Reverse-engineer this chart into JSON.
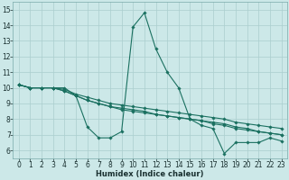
{
  "xlabel": "Humidex (Indice chaleur)",
  "bg_color": "#cce8e8",
  "grid_color": "#aacece",
  "line_color": "#1a7060",
  "xlim": [
    -0.5,
    23.5
  ],
  "ylim": [
    5.5,
    15.5
  ],
  "xticks": [
    0,
    1,
    2,
    3,
    4,
    5,
    6,
    7,
    8,
    9,
    10,
    11,
    12,
    13,
    14,
    15,
    16,
    17,
    18,
    19,
    20,
    21,
    22,
    23
  ],
  "yticks": [
    6,
    7,
    8,
    9,
    10,
    11,
    12,
    13,
    14,
    15
  ],
  "lines": [
    [
      10.2,
      10.0,
      10.0,
      10.0,
      10.0,
      9.5,
      7.5,
      6.8,
      6.8,
      7.2,
      13.9,
      14.8,
      12.5,
      11.0,
      10.0,
      8.0,
      7.6,
      7.4,
      5.8,
      6.5,
      6.5,
      6.5,
      6.8,
      6.6
    ],
    [
      10.2,
      10.0,
      10.0,
      10.0,
      9.8,
      9.5,
      9.2,
      9.0,
      8.8,
      8.6,
      8.5,
      8.4,
      8.3,
      8.2,
      8.1,
      8.0,
      7.9,
      7.8,
      7.7,
      7.5,
      7.4,
      7.2,
      7.1,
      7.0
    ],
    [
      10.2,
      10.0,
      10.0,
      10.0,
      9.8,
      9.5,
      9.2,
      9.0,
      8.8,
      8.7,
      8.6,
      8.5,
      8.3,
      8.2,
      8.1,
      8.0,
      7.9,
      7.7,
      7.6,
      7.4,
      7.3,
      7.2,
      7.1,
      7.0
    ],
    [
      10.2,
      10.0,
      10.0,
      10.0,
      9.9,
      9.6,
      9.4,
      9.2,
      9.0,
      8.9,
      8.8,
      8.7,
      8.6,
      8.5,
      8.4,
      8.3,
      8.2,
      8.1,
      8.0,
      7.8,
      7.7,
      7.6,
      7.5,
      7.4
    ]
  ],
  "tick_fontsize": 5.5,
  "xlabel_fontsize": 6.0
}
